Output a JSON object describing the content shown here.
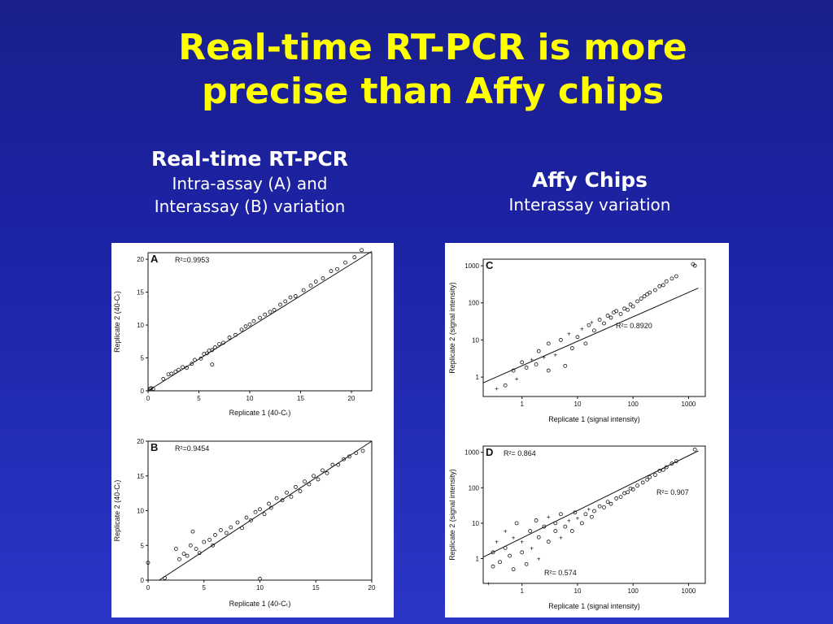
{
  "slide": {
    "title_line1": "Real-time RT-PCR is more",
    "title_line2": "precise than Affy chips",
    "left_heading": "Real-time RT-PCR",
    "left_sub1": "Intra-assay (A) and",
    "left_sub2": "Interassay (B) variation",
    "right_heading": "Affy Chips",
    "right_sub": "Interassay variation"
  },
  "chart_data": [
    {
      "type": "scatter",
      "panel": "A",
      "r2_label": "R²=0.9953",
      "xlabel": "Replicate 1 (40-Cₜ)",
      "ylabel": "Replicate 2 (40-Cₜ)",
      "xlim": [
        0,
        22
      ],
      "ylim": [
        0,
        21
      ],
      "xticks": [
        0,
        5,
        10,
        15,
        20
      ],
      "yticks": [
        0,
        5,
        10,
        15,
        20
      ],
      "scale": "linear",
      "fit_line": [
        [
          0,
          0
        ],
        [
          22,
          21.2
        ]
      ],
      "points": [
        [
          0.2,
          0.3
        ],
        [
          0.3,
          0.4
        ],
        [
          0.5,
          0.3
        ],
        [
          1.5,
          1.8
        ],
        [
          2,
          2.5
        ],
        [
          2.3,
          2.6
        ],
        [
          2.7,
          2.9
        ],
        [
          3,
          3.2
        ],
        [
          3.4,
          3.6
        ],
        [
          3.8,
          3.5
        ],
        [
          4.3,
          4.1
        ],
        [
          4.6,
          4.7
        ],
        [
          5.2,
          4.9
        ],
        [
          5.5,
          5.6
        ],
        [
          5.8,
          5.7
        ],
        [
          6,
          6.1
        ],
        [
          6.3,
          6.2
        ],
        [
          6.6,
          6.6
        ],
        [
          7,
          7.1
        ],
        [
          7.4,
          7.3
        ],
        [
          8,
          8.1
        ],
        [
          8.6,
          8.5
        ],
        [
          9.2,
          9.3
        ],
        [
          9.6,
          9.8
        ],
        [
          10,
          10.1
        ],
        [
          10.4,
          10.6
        ],
        [
          11,
          11.1
        ],
        [
          11.5,
          11.6
        ],
        [
          12,
          12
        ],
        [
          12.4,
          12.3
        ],
        [
          13,
          13.1
        ],
        [
          13.5,
          13.6
        ],
        [
          14,
          14.2
        ],
        [
          14.5,
          14.4
        ],
        [
          15.3,
          15.3
        ],
        [
          16,
          16
        ],
        [
          16.5,
          16.6
        ],
        [
          17.2,
          17.1
        ],
        [
          18,
          18.2
        ],
        [
          18.6,
          18.5
        ],
        [
          19.4,
          19.5
        ],
        [
          20.3,
          20.3
        ],
        [
          21,
          21.4
        ],
        [
          6.3,
          4
        ]
      ]
    },
    {
      "type": "scatter",
      "panel": "B",
      "r2_label": "R²=0.9454",
      "xlabel": "Replicate 1 (40-Cₜ)",
      "ylabel": "Replicate 2 (40-Cₜ)",
      "xlim": [
        0,
        20
      ],
      "ylim": [
        0,
        20
      ],
      "xticks": [
        0,
        5,
        10,
        15,
        20
      ],
      "yticks": [
        0,
        5,
        10,
        15,
        20
      ],
      "scale": "linear",
      "fit_line": [
        [
          1,
          0
        ],
        [
          20,
          20
        ]
      ],
      "points": [
        [
          0,
          2.5
        ],
        [
          1.5,
          0.3
        ],
        [
          2.5,
          4.5
        ],
        [
          2.8,
          3
        ],
        [
          3.2,
          3.8
        ],
        [
          3.5,
          3.5
        ],
        [
          3.8,
          5
        ],
        [
          4,
          7
        ],
        [
          4.3,
          4.5
        ],
        [
          4.6,
          3.9
        ],
        [
          5,
          5.5
        ],
        [
          5.5,
          5.8
        ],
        [
          5.8,
          5
        ],
        [
          6,
          6.5
        ],
        [
          6.5,
          7.2
        ],
        [
          7,
          6.8
        ],
        [
          7.4,
          7.6
        ],
        [
          8,
          8.3
        ],
        [
          8.4,
          7.5
        ],
        [
          8.8,
          9
        ],
        [
          9.2,
          8.6
        ],
        [
          9.6,
          9.8
        ],
        [
          10,
          10.2
        ],
        [
          10.4,
          9.5
        ],
        [
          10.8,
          11
        ],
        [
          11,
          10.4
        ],
        [
          11.5,
          11.8
        ],
        [
          12,
          11.5
        ],
        [
          12.4,
          12.6
        ],
        [
          12.8,
          12
        ],
        [
          13.2,
          13.4
        ],
        [
          13.6,
          12.8
        ],
        [
          14,
          14.2
        ],
        [
          14.4,
          13.8
        ],
        [
          14.8,
          15
        ],
        [
          15.2,
          14.5
        ],
        [
          15.6,
          15.8
        ],
        [
          16,
          15.4
        ],
        [
          16.5,
          16.6
        ],
        [
          17,
          16.6
        ],
        [
          17.5,
          17.4
        ],
        [
          18,
          17.8
        ],
        [
          18.6,
          18.3
        ],
        [
          19.2,
          18.6
        ],
        [
          10,
          0.2
        ]
      ]
    },
    {
      "type": "scatter",
      "panel": "C",
      "r2_label": "R²= 0.8920",
      "xlabel": "Replicate 1 (signal intensity)",
      "ylabel": "Replicate 2 (signal intensity)",
      "xlim": [
        0.2,
        2000
      ],
      "ylim": [
        0.3,
        1500
      ],
      "xticks": [
        1,
        10,
        100,
        1000
      ],
      "yticks": [
        1,
        10,
        100,
        1000
      ],
      "scale": "log",
      "fit_line": [
        [
          0.2,
          0.7
        ],
        [
          1500,
          250
        ]
      ],
      "points": [
        [
          0.35,
          0.5
        ],
        [
          0.5,
          0.6
        ],
        [
          0.7,
          1.5
        ],
        [
          0.8,
          0.9
        ],
        [
          1,
          2.5
        ],
        [
          1.2,
          1.8
        ],
        [
          1.5,
          3
        ],
        [
          1.8,
          2.2
        ],
        [
          2,
          5
        ],
        [
          2.5,
          3.5
        ],
        [
          3,
          1.5
        ],
        [
          3,
          8
        ],
        [
          4,
          4
        ],
        [
          5,
          10
        ],
        [
          6,
          2
        ],
        [
          7,
          15
        ],
        [
          8,
          6
        ],
        [
          10,
          12
        ],
        [
          12,
          20
        ],
        [
          14,
          8
        ],
        [
          16,
          25
        ],
        [
          18,
          30
        ],
        [
          20,
          18
        ],
        [
          25,
          35
        ],
        [
          30,
          28
        ],
        [
          35,
          45
        ],
        [
          40,
          40
        ],
        [
          45,
          55
        ],
        [
          50,
          60
        ],
        [
          60,
          50
        ],
        [
          70,
          70
        ],
        [
          80,
          65
        ],
        [
          90,
          90
        ],
        [
          100,
          80
        ],
        [
          120,
          110
        ],
        [
          140,
          130
        ],
        [
          160,
          150
        ],
        [
          180,
          170
        ],
        [
          200,
          190
        ],
        [
          250,
          220
        ],
        [
          300,
          280
        ],
        [
          350,
          300
        ],
        [
          400,
          380
        ],
        [
          500,
          450
        ],
        [
          600,
          520
        ],
        [
          1200,
          1100
        ],
        [
          1300,
          1000
        ]
      ]
    },
    {
      "type": "scatter",
      "panel": "D",
      "r2_labels": [
        "R²= 0.864",
        "R²= 0.907",
        "R²= 0.574"
      ],
      "xlabel": "Replicate 1 (signal intensity)",
      "ylabel": "Replicate 2 (signal intensity)",
      "xlim": [
        0.2,
        2000
      ],
      "ylim": [
        0.2,
        1500
      ],
      "xticks": [
        1,
        10,
        100,
        1000
      ],
      "yticks": [
        1,
        10,
        100,
        1000
      ],
      "scale": "log",
      "fit_line": [
        [
          0.2,
          1.1
        ],
        [
          1500,
          1100
        ]
      ],
      "points": [
        [
          0.25,
          0.2
        ],
        [
          0.3,
          0.6
        ],
        [
          0.3,
          1.5
        ],
        [
          0.35,
          3
        ],
        [
          0.4,
          0.8
        ],
        [
          0.5,
          2
        ],
        [
          0.5,
          6
        ],
        [
          0.6,
          1.2
        ],
        [
          0.7,
          0.5
        ],
        [
          0.7,
          4
        ],
        [
          0.8,
          10
        ],
        [
          1,
          1.5
        ],
        [
          1,
          3
        ],
        [
          1.2,
          0.7
        ],
        [
          1.4,
          6
        ],
        [
          1.5,
          2
        ],
        [
          1.8,
          12
        ],
        [
          2,
          4
        ],
        [
          2,
          1
        ],
        [
          2.5,
          8
        ],
        [
          3,
          3
        ],
        [
          3,
          15
        ],
        [
          4,
          6
        ],
        [
          4,
          10
        ],
        [
          5,
          4
        ],
        [
          5,
          18
        ],
        [
          6,
          8
        ],
        [
          7,
          12
        ],
        [
          8,
          6
        ],
        [
          9,
          20
        ],
        [
          10,
          14
        ],
        [
          12,
          10
        ],
        [
          14,
          18
        ],
        [
          16,
          25
        ],
        [
          18,
          15
        ],
        [
          20,
          22
        ],
        [
          25,
          30
        ],
        [
          30,
          28
        ],
        [
          35,
          40
        ],
        [
          40,
          35
        ],
        [
          50,
          50
        ],
        [
          60,
          55
        ],
        [
          70,
          70
        ],
        [
          80,
          75
        ],
        [
          90,
          95
        ],
        [
          100,
          90
        ],
        [
          120,
          115
        ],
        [
          150,
          140
        ],
        [
          180,
          170
        ],
        [
          200,
          200
        ],
        [
          250,
          230
        ],
        [
          300,
          300
        ],
        [
          350,
          320
        ],
        [
          400,
          380
        ],
        [
          500,
          480
        ],
        [
          600,
          560
        ],
        [
          1300,
          1200
        ]
      ]
    }
  ]
}
